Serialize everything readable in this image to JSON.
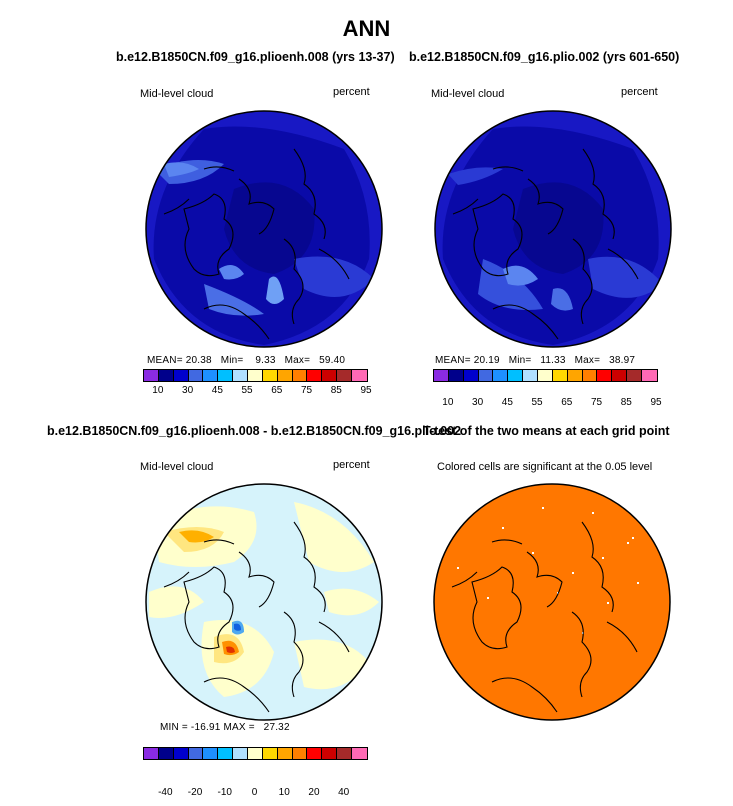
{
  "title": "ANN",
  "panels": {
    "p1": {
      "case_title": "b.e12.B1850CN.f09_g16.plioenh.008 (yrs 13-37)",
      "variable": "Mid-level cloud",
      "units": "percent",
      "stats": {
        "mean_label": "MEAN=",
        "mean": "20.38",
        "min_label": "Min=",
        "min": "9.33",
        "max_label": "Max=",
        "max": "59.40"
      },
      "colorbar_labels": [
        "10",
        "30",
        "45",
        "55",
        "65",
        "75",
        "85",
        "95"
      ]
    },
    "p2": {
      "case_title": "b.e12.B1850CN.f09_g16.plio.002 (yrs 601-650)",
      "variable": "Mid-level cloud",
      "units": "percent",
      "stats": {
        "mean_label": "MEAN=",
        "mean": "20.19",
        "min_label": "Min=",
        "min": "11.33",
        "max_label": "Max=",
        "max": "38.97"
      },
      "colorbar_labels": [
        "10",
        "30",
        "45",
        "55",
        "65",
        "75",
        "85",
        "95"
      ]
    },
    "p3": {
      "case_title": "b.e12.B1850CN.f09_g16.plioenh.008 - b.e12.B1850CN.f09_g16.plio.002",
      "variable": "Mid-level cloud",
      "units": "percent",
      "stats_text": "MIN = -16.91 MAX =   27.32",
      "colorbar_labels": [
        "-40",
        "-20",
        "-10",
        "0",
        "10",
        "20",
        "40"
      ]
    },
    "p4": {
      "case_title": "T-test of the two means at each grid point",
      "subtitle": "Colored cells are significant at the 0.05 level"
    }
  },
  "colors": {
    "colorbar": [
      "#8a2be2",
      "#00008b",
      "#0000cd",
      "#4169e1",
      "#1e90ff",
      "#00bfff",
      "#b0e0ff",
      "#ffffcc",
      "#ffd700",
      "#ffa500",
      "#ff7f00",
      "#ff0000",
      "#cd0000",
      "#a52a2a",
      "#ff69b4"
    ],
    "map_base": "#1a1ac8",
    "diff_base": "#d6f3fb",
    "ttest_fill": "#ff7700"
  }
}
